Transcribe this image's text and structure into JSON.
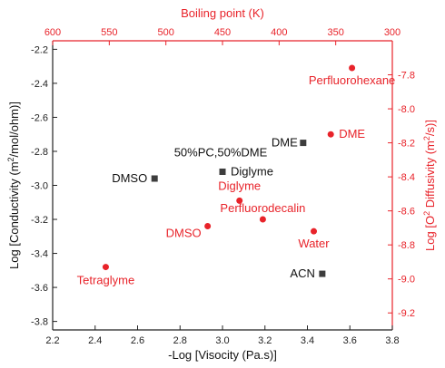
{
  "chart_data": {
    "type": "scatter",
    "axes": {
      "x_bottom": {
        "label": "-Log [Visocity (Pa.s)]",
        "range": [
          2.2,
          3.8
        ],
        "ticks": [
          "2.2",
          "2.4",
          "2.6",
          "2.8",
          "3.0",
          "3.2",
          "3.4",
          "3.6",
          "3.8"
        ]
      },
      "x_top": {
        "label": "Boiling point (K)",
        "range": [
          600,
          300
        ],
        "ticks": [
          "600",
          "550",
          "500",
          "450",
          "400",
          "350",
          "300"
        ]
      },
      "y_left": {
        "label_parts": [
          "Log [Conductivity (m",
          "2",
          "/mol/ohm)]"
        ],
        "range": [
          -3.85,
          -2.15
        ],
        "ticks": [
          "-2.2",
          "-2.4",
          "-2.6",
          "-2.8",
          "-3.0",
          "-3.2",
          "-3.4",
          "-3.6",
          "-3.8"
        ]
      },
      "y_right": {
        "label_parts": [
          "Log [O",
          "2",
          " Diffusivity (m",
          "2",
          "/s)]"
        ],
        "range": [
          -9.3,
          -7.6
        ],
        "ticks": [
          "-7.8",
          "-8.0",
          "-8.2",
          "-8.4",
          "-8.6",
          "-8.8",
          "-9.0",
          "-9.2"
        ]
      }
    },
    "series": [
      {
        "axis": "left",
        "marker": "square",
        "color": "#3d3d3d",
        "points": [
          {
            "label": "DMSO",
            "x": 2.68,
            "y": -2.96
          },
          {
            "label": "50%PC,50%DME",
            "x": 3.0,
            "y": -2.92
          },
          {
            "label": "Diglyme",
            "x": 3.0,
            "y": -2.92
          },
          {
            "label": "DME",
            "x": 3.38,
            "y": -2.75
          },
          {
            "label": "ACN",
            "x": 3.47,
            "y": -3.52
          }
        ]
      },
      {
        "axis": "right",
        "marker": "circle",
        "color": "#e8232a",
        "points": [
          {
            "label": "Perfluorohexane",
            "x": 3.61,
            "y": -7.76
          },
          {
            "label": "DME",
            "x": 3.51,
            "y": -8.15
          },
          {
            "label": "Diglyme",
            "x": 3.08,
            "y": -8.54
          },
          {
            "label": "Perfluorodecalin",
            "x": 3.19,
            "y": -8.65
          },
          {
            "label": "DMSO",
            "x": 2.93,
            "y": -8.69
          },
          {
            "label": "Water",
            "x": 3.43,
            "y": -8.72
          },
          {
            "label": "Tetraglyme",
            "x": 2.45,
            "y": -8.93
          }
        ]
      }
    ],
    "grid": false,
    "legend": "none"
  }
}
